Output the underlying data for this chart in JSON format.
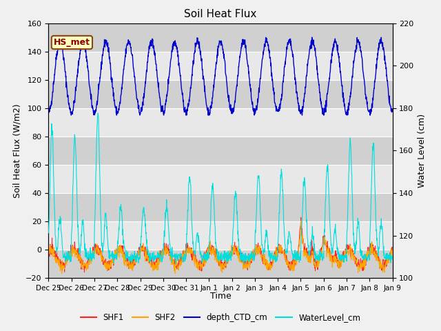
{
  "title": "Soil Heat Flux",
  "ylabel_left": "Soil Heat Flux (W/m2)",
  "ylabel_right": "Water Level (cm)",
  "xlabel": "Time",
  "ylim_left": [
    -20,
    160
  ],
  "ylim_right": [
    100,
    220
  ],
  "annotation_text": "HS_met",
  "annotation_color": "#8B0000",
  "annotation_bg": "#FFFFC0",
  "annotation_border": "#8B4513",
  "xtick_labels": [
    "Dec 25",
    "Dec 26",
    "Dec 27",
    "Dec 28",
    "Dec 29",
    "Dec 30",
    "Dec 31",
    "Jan 1",
    "Jan 2",
    "Jan 3",
    "Jan 4",
    "Jan 5",
    "Jan 6",
    "Jan 7",
    "Jan 8",
    "Jan 9"
  ],
  "shf1_color": "#FF2020",
  "shf2_color": "#FFA500",
  "depth_ctd_color": "#0000CC",
  "water_level_color": "#00DDDD",
  "fig_bg": "#F0F0F0",
  "axes_bg": "#E8E8E8",
  "band_colors": [
    "#D0D0D0",
    "#E8E8E8"
  ],
  "legend_labels": [
    "SHF1",
    "SHF2",
    "depth_CTD_cm",
    "WaterLevel_cm"
  ],
  "n_days": 15,
  "pts_per_day": 96,
  "seed": 42
}
